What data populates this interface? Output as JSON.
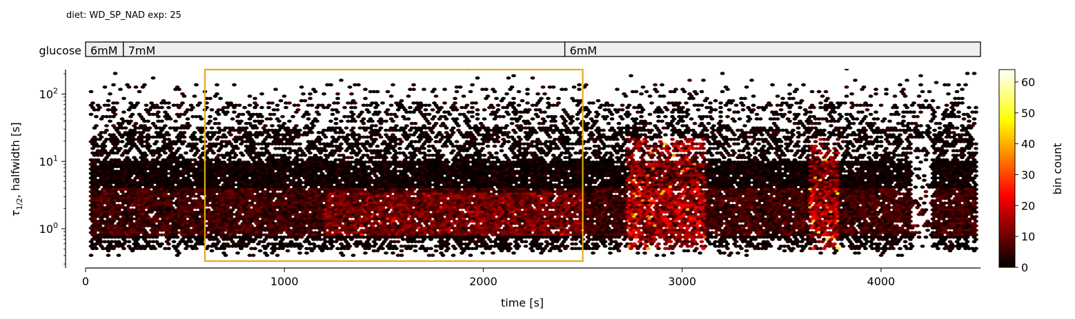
{
  "header": {
    "title": "diet: WD_SP_NAD  exp: 25"
  },
  "glucose_bar": {
    "label": "glucose",
    "segments": [
      {
        "label": "6mM",
        "start": 0,
        "end": 190
      },
      {
        "label": "7mM",
        "start": 190,
        "end": 2410
      },
      {
        "label": "6mM",
        "start": 2410,
        "end": 4500
      }
    ]
  },
  "chart_data": {
    "type": "heatmap",
    "subtype": "hexbin",
    "xlabel": "time [s]",
    "ylabel": "τ1/2, halfwidth [s]",
    "ylabel_main": "τ",
    "ylabel_sub": "1/2",
    "ylabel_rest": ", halfwidth [s]",
    "xlim": [
      0,
      4500
    ],
    "ylim": [
      0.28,
      230
    ],
    "yscale": "log",
    "xticks": [
      0,
      1000,
      2000,
      3000,
      4000
    ],
    "xtick_labels": [
      "0",
      "1000",
      "2000",
      "3000",
      "4000"
    ],
    "yticks": [
      1,
      10,
      100
    ],
    "ytick_labels": [
      "10⁰",
      "10¹",
      "10²"
    ],
    "ytick_base": "10",
    "ytick_exps": [
      "0",
      "1",
      "2"
    ],
    "grid": false,
    "colormap": "hot",
    "colorbar": {
      "label": "bin count",
      "range": [
        0,
        64
      ],
      "ticks": [
        0,
        10,
        20,
        30,
        40,
        50,
        60
      ],
      "tick_labels": [
        "0",
        "10",
        "20",
        "30",
        "40",
        "50",
        "60"
      ]
    },
    "highlight_window": {
      "x_start": 600,
      "x_end": 2500,
      "color": "#e6a817"
    },
    "bursts": [
      {
        "x_start": 2720,
        "x_end": 3120,
        "peak_count": 45
      },
      {
        "x_start": 3640,
        "x_end": 3790,
        "peak_count": 50
      }
    ]
  }
}
